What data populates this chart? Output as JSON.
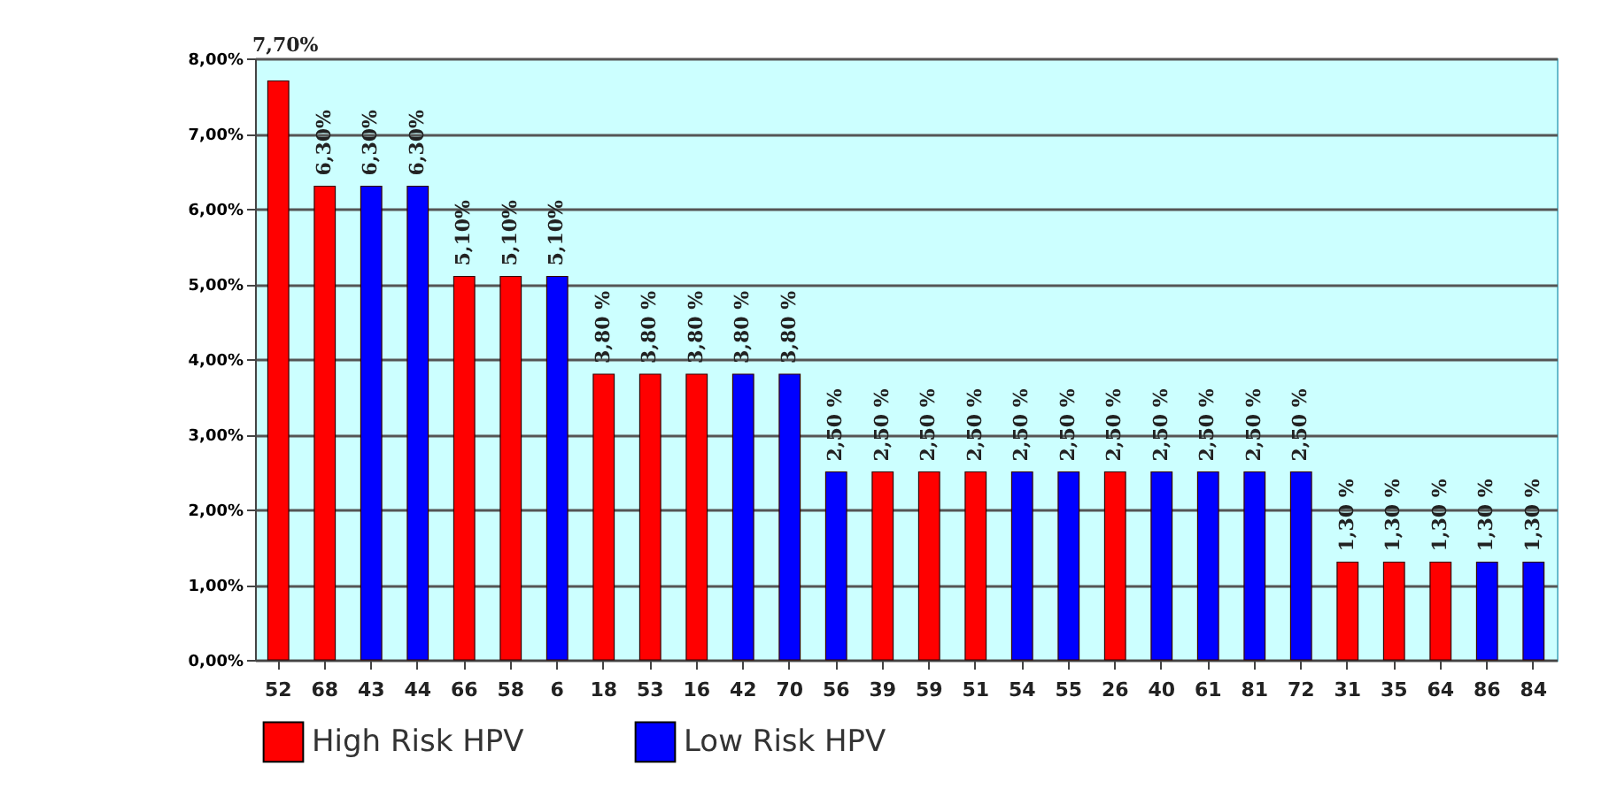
{
  "chart_data": {
    "type": "bar",
    "categories": [
      "52",
      "68",
      "43",
      "44",
      "66",
      "58",
      "6",
      "18",
      "53",
      "16",
      "42",
      "70",
      "56",
      "39",
      "59",
      "51",
      "54",
      "55",
      "26",
      "40",
      "61",
      "81",
      "72",
      "31",
      "35",
      "64",
      "86",
      "84"
    ],
    "series": [
      {
        "name": "High Risk HPV",
        "color": "#ff0000",
        "values": [
          7.7,
          6.3,
          null,
          null,
          5.1,
          5.1,
          null,
          3.8,
          3.8,
          3.8,
          null,
          null,
          null,
          2.5,
          2.5,
          2.5,
          null,
          null,
          2.5,
          null,
          null,
          null,
          null,
          1.3,
          1.3,
          1.3,
          null,
          null
        ],
        "value_labels": [
          "7,70%",
          "6,30%",
          null,
          null,
          "5,10%",
          "5,10%",
          null,
          "3,80 %",
          "3,80 %",
          "3,80 %",
          null,
          null,
          null,
          "2,50 %",
          "2,50 %",
          "2,50 %",
          null,
          null,
          "2,50 %",
          null,
          null,
          null,
          null,
          "1,30 %",
          "1,30 %",
          "1,30 %",
          null,
          null
        ]
      },
      {
        "name": "Low Risk HPV",
        "color": "#0000ff",
        "values": [
          null,
          null,
          6.3,
          6.3,
          null,
          null,
          5.1,
          null,
          null,
          null,
          3.8,
          3.8,
          2.5,
          null,
          null,
          null,
          2.5,
          2.5,
          null,
          2.5,
          2.5,
          2.5,
          2.5,
          null,
          null,
          null,
          1.3,
          1.3
        ],
        "value_labels": [
          null,
          null,
          "6,30%",
          "6,30%",
          null,
          null,
          "5,10%",
          null,
          null,
          null,
          "3,80 %",
          "3,80 %",
          "2,50 %",
          null,
          null,
          null,
          "2,50 %",
          "2,50 %",
          null,
          "2,50 %",
          "2,50 %",
          "2,50 %",
          "2,50 %",
          null,
          null,
          null,
          "1,30 %",
          "1,30 %"
        ]
      }
    ],
    "ylim": [
      0,
      8
    ],
    "yticks": [
      {
        "value": 0,
        "label": "0,00%"
      },
      {
        "value": 1,
        "label": "1,00%"
      },
      {
        "value": 2,
        "label": "2,00%"
      },
      {
        "value": 3,
        "label": "3,00%"
      },
      {
        "value": 4,
        "label": "4,00%"
      },
      {
        "value": 5,
        "label": "5,00%"
      },
      {
        "value": 6,
        "label": "6,00%"
      },
      {
        "value": 7,
        "label": "7,00%"
      },
      {
        "value": 8,
        "label": "8,00%"
      }
    ],
    "grid": "y",
    "legend": "bottom"
  }
}
